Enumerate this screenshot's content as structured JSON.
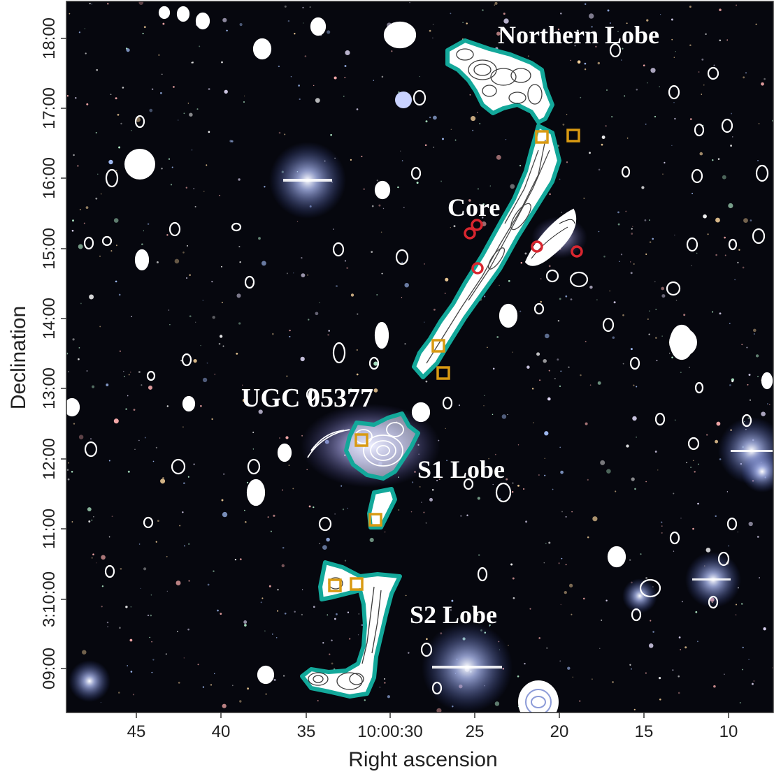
{
  "figure": {
    "axes": {
      "xlabel": "Right ascension",
      "ylabel": "Declination",
      "x_ticks": [
        "45",
        "40",
        "35",
        "10:00:30",
        "25",
        "20",
        "15",
        "10"
      ],
      "y_ticks": [
        "09:00",
        "3:10:00",
        "11:00",
        "12:00",
        "13:00",
        "14:00",
        "15:00",
        "16:00",
        "17:00",
        "18:00"
      ]
    },
    "annotations": {
      "northern_lobe": "Northern Lobe",
      "core": "Core",
      "ugc": "UGC 05377",
      "s1_lobe": "S1 Lobe",
      "s2_lobe": "S2 Lobe"
    },
    "colors": {
      "sky": "#06070e",
      "lobe_outline": "#13a89a",
      "contour": "#ffffff",
      "square_marker": "#d99a12",
      "circle_marker": "#d9262f"
    }
  }
}
